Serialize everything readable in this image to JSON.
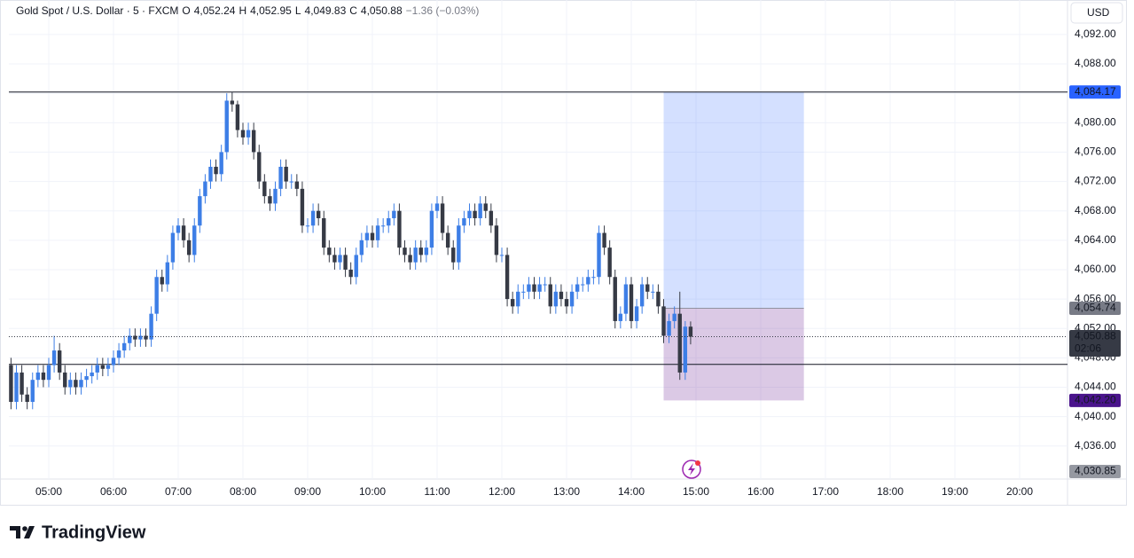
{
  "header": {
    "symbol": "Gold Spot / U.S. Dollar · 5 · FXCM",
    "o_key": "O",
    "open": "4,052.24",
    "h_key": "H",
    "high": "4,052.95",
    "l_key": "L",
    "low": "4,049.83",
    "c_key": "C",
    "close": "4,050.88",
    "change": "−1.36 (−0.03%)"
  },
  "currency": "USD",
  "logo": "TradingView",
  "chart_data": {
    "type": "candlestick",
    "x": [
      "04:25",
      "04:30",
      "04:35",
      "04:40",
      "04:45",
      "04:50",
      "04:55",
      "05:00",
      "05:05",
      "05:10",
      "05:15",
      "05:20",
      "05:25",
      "05:30",
      "05:35",
      "05:40",
      "05:45",
      "05:50",
      "05:55",
      "06:00",
      "06:05",
      "06:10",
      "06:15",
      "06:20",
      "06:25",
      "06:30",
      "06:35",
      "06:40",
      "06:45",
      "06:50",
      "06:55",
      "07:00",
      "07:05",
      "07:10",
      "07:15",
      "07:20",
      "07:25",
      "07:30",
      "07:35",
      "07:40",
      "07:45",
      "07:50",
      "07:55",
      "08:00",
      "08:05",
      "08:10",
      "08:15",
      "08:20",
      "08:25",
      "08:30",
      "08:35",
      "08:40",
      "08:45",
      "08:50",
      "08:55",
      "09:00",
      "09:05",
      "09:10",
      "09:15",
      "09:20",
      "09:25",
      "09:30",
      "09:35",
      "09:40",
      "09:45",
      "09:50",
      "09:55",
      "10:00",
      "10:05",
      "10:10",
      "10:15",
      "10:20",
      "10:25",
      "10:30",
      "10:35",
      "10:40",
      "10:45",
      "10:50",
      "10:55",
      "11:00",
      "11:05",
      "11:10",
      "11:15",
      "11:20",
      "11:25",
      "11:30",
      "11:35",
      "11:40",
      "11:45",
      "11:50",
      "11:55",
      "12:00",
      "12:05",
      "12:10",
      "12:15",
      "12:20",
      "12:25",
      "12:30",
      "12:35",
      "12:40",
      "12:45",
      "12:50",
      "12:55",
      "13:00",
      "13:05",
      "13:10",
      "13:15",
      "13:20",
      "13:25",
      "13:30",
      "13:35",
      "13:40",
      "13:45",
      "13:50",
      "13:55",
      "14:00",
      "14:05",
      "14:10",
      "14:15",
      "14:20",
      "14:25",
      "14:30",
      "14:35",
      "14:40",
      "14:45",
      "14:50",
      "14:55"
    ],
    "open": [
      4047,
      4042,
      4046,
      4043,
      4042,
      4045,
      4046,
      4045,
      4047,
      4049,
      4046,
      4044,
      4045,
      4044,
      4045,
      4045.5,
      4046,
      4047,
      4046.5,
      4047,
      4048,
      4049,
      4050,
      4051,
      4050.5,
      4051,
      4050.5,
      4054,
      4059,
      4058,
      4061,
      4065,
      4066,
      4064,
      4062,
      4066,
      4070,
      4072,
      4074,
      4073,
      4076,
      4083,
      4082.5,
      4079,
      4078,
      4079,
      4076,
      4072,
      4070,
      4069,
      4071,
      4074,
      4072,
      4072,
      4071,
      4066,
      4066,
      4068,
      4067,
      4063,
      4062,
      4061,
      4062,
      4060,
      4059,
      4062,
      4064,
      4065,
      4064,
      4066,
      4066,
      4067,
      4068,
      4063,
      4062,
      4061,
      4063,
      4062,
      4063,
      4068,
      4069,
      4065,
      4063,
      4061,
      4066,
      4067,
      4068,
      4067,
      4069,
      4068,
      4066,
      4062,
      4062,
      4056,
      4055,
      4057,
      4057,
      4058,
      4057,
      4058,
      4058,
      4055,
      4057,
      4056,
      4055,
      4057,
      4058,
      4058,
      4059,
      4059,
      4065,
      4063,
      4059,
      4053,
      4054,
      4058,
      4053,
      4055,
      4058,
      4057,
      4057,
      4055,
      4051,
      4053,
      4054,
      4046,
      4052.24
    ],
    "high": [
      4048,
      4047,
      4047,
      4044,
      4046,
      4047,
      4047,
      4048,
      4051,
      4050,
      4047,
      4046,
      4046,
      4046,
      4046.5,
      4047,
      4048,
      4048,
      4048,
      4049,
      4050,
      4051,
      4052,
      4052,
      4052,
      4052,
      4055,
      4060,
      4060,
      4062,
      4066,
      4067,
      4067,
      4065,
      4067,
      4071,
      4073,
      4075,
      4075,
      4077,
      4084,
      4084.17,
      4083,
      4080,
      4080,
      4080,
      4077,
      4073,
      4071,
      4072,
      4075,
      4075,
      4073,
      4073,
      4072,
      4067,
      4069,
      4069,
      4068,
      4064,
      4063,
      4063,
      4063,
      4061,
      4063,
      4065,
      4066,
      4066,
      4067,
      4067,
      4068,
      4069,
      4069,
      4064,
      4063,
      4064,
      4064,
      4064,
      4069,
      4070,
      4070,
      4066,
      4064,
      4067,
      4068,
      4069,
      4069,
      4070,
      4070,
      4069,
      4067,
      4063,
      4063,
      4057,
      4058,
      4058,
      4059,
      4059,
      4059,
      4059,
      4059,
      4058,
      4058,
      4057,
      4058,
      4059,
      4059,
      4060,
      4060,
      4066,
      4066,
      4064,
      4060,
      4055,
      4059,
      4059,
      4056,
      4059,
      4059,
      4058,
      4058,
      4056,
      4054,
      4055,
      4057,
      4053,
      4052.95
    ],
    "low": [
      4041,
      4041,
      4042,
      4041,
      4041,
      4044,
      4044,
      4044,
      4046,
      4045,
      4043,
      4043,
      4043,
      4043,
      4044,
      4044.5,
      4045,
      4045.5,
      4045.5,
      4046,
      4047,
      4048,
      4049,
      4049.5,
      4049.5,
      4049.5,
      4049.5,
      4053,
      4057,
      4057,
      4060,
      4064,
      4063,
      4061,
      4061,
      4065,
      4069,
      4071,
      4072,
      4072,
      4075,
      4081.5,
      4078,
      4077,
      4077,
      4075,
      4071,
      4069,
      4068,
      4068,
      4070,
      4071,
      4071,
      4070,
      4065,
      4065,
      4065,
      4066,
      4062,
      4061,
      4060,
      4060,
      4059,
      4058,
      4058,
      4061,
      4063,
      4063,
      4063,
      4065,
      4065,
      4066,
      4062,
      4061,
      4060,
      4060,
      4061,
      4061,
      4062,
      4067,
      4064,
      4062,
      4060,
      4060,
      4065,
      4066,
      4066,
      4066,
      4067,
      4065,
      4061,
      4061,
      4055,
      4054,
      4054,
      4056,
      4056,
      4056,
      4056,
      4057,
      4054,
      4054,
      4055,
      4054,
      4054,
      4056,
      4057,
      4057,
      4058,
      4058,
      4062,
      4058,
      4052,
      4052,
      4053,
      4052,
      4052,
      4054,
      4056,
      4056,
      4054,
      4050,
      4050,
      4052,
      4045,
      4045,
      4049.83
    ],
    "close": [
      4042,
      4046,
      4043,
      4042,
      4045,
      4046,
      4045,
      4047,
      4049,
      4046,
      4044,
      4045,
      4044,
      4045,
      4045.5,
      4046,
      4047,
      4046.5,
      4047,
      4048,
      4049,
      4050,
      4051,
      4050.5,
      4051,
      4050.5,
      4054,
      4059,
      4058,
      4061,
      4065,
      4066,
      4064,
      4062,
      4066,
      4070,
      4072,
      4074,
      4073,
      4076,
      4083,
      4082.5,
      4079,
      4078,
      4079,
      4076,
      4072,
      4070,
      4069,
      4071,
      4074,
      4072,
      4072,
      4071,
      4066,
      4066,
      4068,
      4067,
      4063,
      4062,
      4061,
      4062,
      4060,
      4059,
      4062,
      4064,
      4065,
      4064,
      4066,
      4066,
      4067,
      4068,
      4063,
      4062,
      4061,
      4063,
      4062,
      4063,
      4068,
      4069,
      4065,
      4063,
      4061,
      4066,
      4067,
      4068,
      4067,
      4069,
      4068,
      4066,
      4062,
      4062,
      4056,
      4055,
      4057,
      4057,
      4058,
      4057,
      4058,
      4058,
      4055,
      4057,
      4056,
      4055,
      4057,
      4058,
      4058,
      4059,
      4059,
      4065,
      4063,
      4059,
      4053,
      4054,
      4058,
      4053,
      4055,
      4058,
      4057,
      4057,
      4055,
      4051,
      4053,
      4054,
      4046,
      4052.24,
      4050.88
    ],
    "up_color": "#3d7ee6",
    "down_color": "#363a45",
    "ylim": [
      4031.5,
      4096.7
    ],
    "yticks": [
      {
        "value": 4036,
        "label": "4,036.00"
      },
      {
        "value": 4040,
        "label": "4,040.00"
      },
      {
        "value": 4044,
        "label": "4,044.00"
      },
      {
        "value": 4048,
        "label": "4,048.00"
      },
      {
        "value": 4052,
        "label": "4,052.00"
      },
      {
        "value": 4056,
        "label": "4,056.00"
      },
      {
        "value": 4060,
        "label": "4,060.00"
      },
      {
        "value": 4064,
        "label": "4,064.00"
      },
      {
        "value": 4068,
        "label": "4,068.00"
      },
      {
        "value": 4072,
        "label": "4,072.00"
      },
      {
        "value": 4076,
        "label": "4,076.00"
      },
      {
        "value": 4080,
        "label": "4,080.00"
      },
      {
        "value": 4084,
        "label": "4,084.00"
      },
      {
        "value": 4088,
        "label": "4,088.00"
      },
      {
        "value": 4092,
        "label": "4,092.00"
      }
    ],
    "xticks": [
      "05:00",
      "06:00",
      "07:00",
      "08:00",
      "09:00",
      "10:00",
      "11:00",
      "12:00",
      "13:00",
      "14:00",
      "15:00",
      "16:00",
      "17:00",
      "18:00",
      "19:00",
      "20:00"
    ],
    "grid": true,
    "hlines": [
      4084.17,
      4047.1
    ],
    "position": {
      "start": "14:30",
      "end": "16:40",
      "entry": 4054.74,
      "target": 4084.17,
      "stop": 4042.2,
      "target_color": "rgba(41,98,255,0.2)",
      "stop_color": "rgba(126,60,160,0.28)"
    },
    "price_tags": [
      {
        "value": 4084.17,
        "label": "4,084.17",
        "color": "#2962ff"
      },
      {
        "value": 4054.74,
        "label": "4,054.74",
        "color": "#787b86"
      },
      {
        "value": 4050.88,
        "label": "4,050.88",
        "color": "#363a45",
        "timer": "02:06"
      },
      {
        "value": 4042.2,
        "label": "4,042.20",
        "color": "#4a148c"
      },
      {
        "value": 4030.85,
        "label": "4,030.85",
        "color": "#9598a1"
      }
    ]
  }
}
